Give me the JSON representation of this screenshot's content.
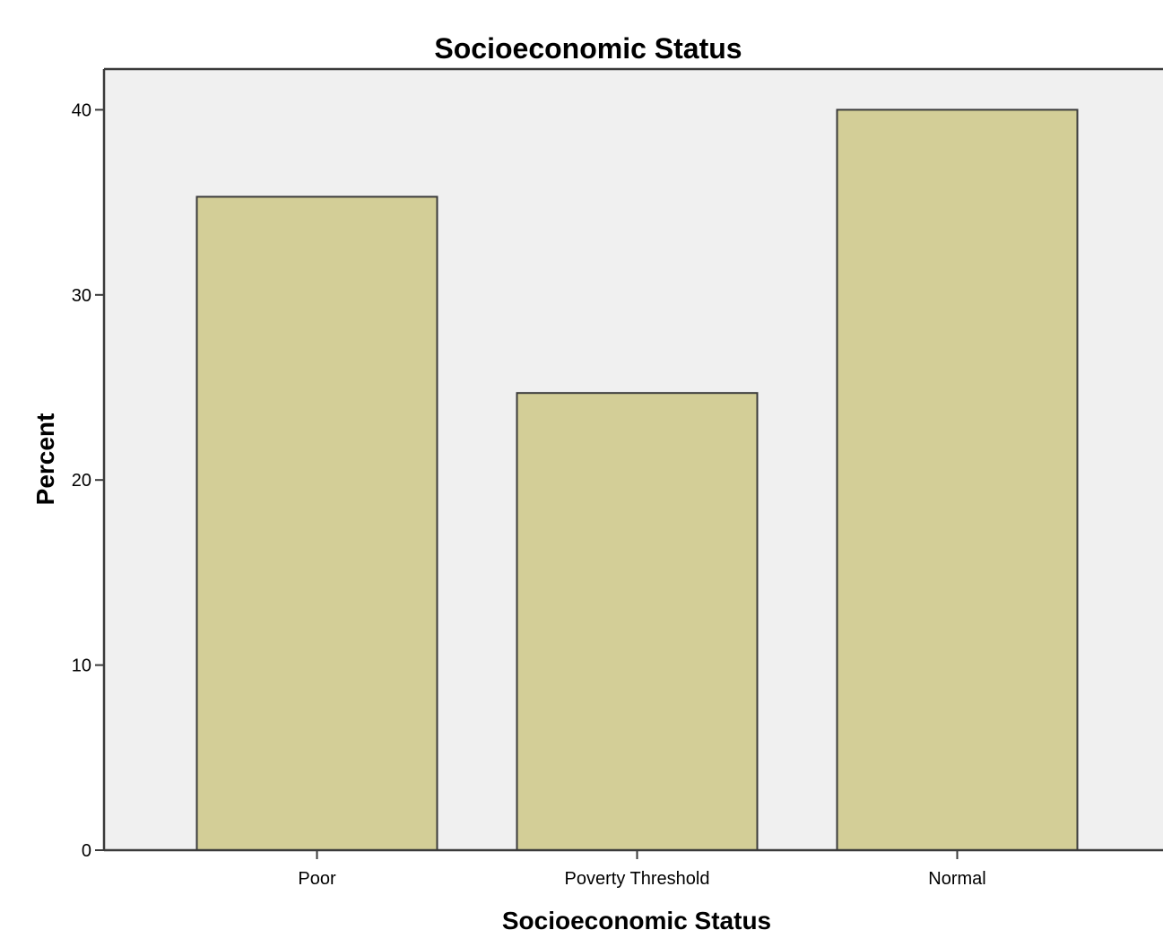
{
  "chart_data": {
    "type": "bar",
    "title": "Socioeconomic Status",
    "xlabel": "Socioeconomic Status",
    "ylabel": "Percent",
    "categories": [
      "Poor",
      "Poverty Threshold",
      "Normal"
    ],
    "values": [
      35.3,
      24.7,
      40.0
    ],
    "ylim": [
      0,
      42.2
    ],
    "yticks": [
      0,
      10,
      20,
      30,
      40
    ],
    "grid": false,
    "legend": "none",
    "colors": {
      "plot_background": "#f0f0f0",
      "bar_fill": "#d3ce97",
      "bar_stroke": "#3a3a3a",
      "axis": "#3a3a3a"
    }
  }
}
